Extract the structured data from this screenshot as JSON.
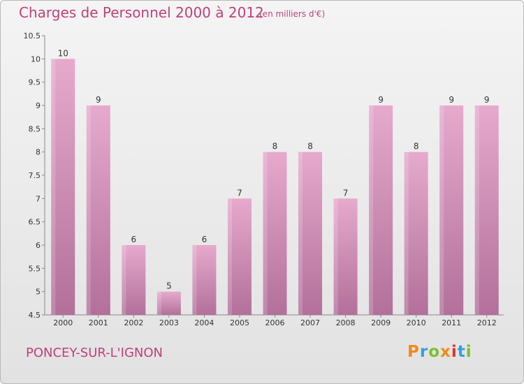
{
  "header": {
    "title": "Charges de Personnel 2000 à 2012",
    "subtitle": "(en milliers d'€)"
  },
  "footer": {
    "commune": "PONCEY-SUR-L'IGNON",
    "logo": "Proxiti"
  },
  "colors": {
    "bar_top": "#e6aacd",
    "bar_bottom": "#b2709a",
    "text_accent": "#c0407a",
    "logo_letters": [
      "#f08a1c",
      "#2fa1de",
      "#7cbf2a",
      "#f08a1c",
      "#e5332a",
      "#2fa1de",
      "#7cbf2a"
    ]
  },
  "chart_data": {
    "type": "bar",
    "title": "Charges de Personnel 2000 à 2012",
    "subtitle": "(en milliers d'€)",
    "categories": [
      "2000",
      "2001",
      "2002",
      "2003",
      "2004",
      "2005",
      "2006",
      "2007",
      "2008",
      "2009",
      "2010",
      "2011",
      "2012"
    ],
    "values": [
      10,
      9,
      6,
      5,
      6,
      7,
      8,
      8,
      7,
      9,
      8,
      9,
      9
    ],
    "ylim": [
      4.5,
      10.5
    ],
    "yticks": [
      "4.5",
      "5",
      "5.5",
      "6",
      "6.5",
      "7",
      "7.5",
      "8",
      "8.5",
      "9",
      "9.5",
      "10",
      "10.5"
    ],
    "grid": false,
    "xlabel": "",
    "ylabel": ""
  }
}
